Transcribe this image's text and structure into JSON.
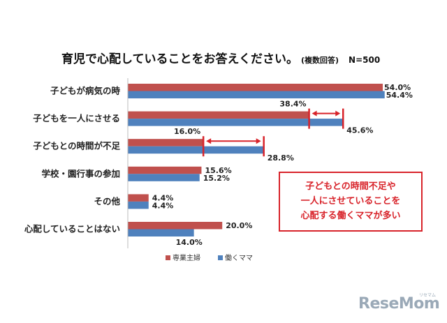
{
  "title": {
    "main": "育児で心配していることをお答えください。",
    "sub": "(複数回答)",
    "n": "N=500"
  },
  "callout": {
    "lines": [
      "子どもとの時間不足や",
      "一人にさせていることを",
      "心配する働くママが多い"
    ]
  },
  "logo": {
    "text": "ReseMom",
    "ruby": "リセマム"
  },
  "colors": {
    "series1": "#c0504d",
    "series2": "#4f81bd",
    "accent": "#d8232a"
  },
  "chart_data": {
    "type": "bar",
    "orientation": "horizontal",
    "categories": [
      "子どもが病気の時",
      "子どもを一人にさせる",
      "子どもとの時間が不足",
      "学校・園行事の参加",
      "その他",
      "心配していることはない"
    ],
    "series": [
      {
        "name": "専業主婦",
        "values": [
          54.0,
          38.4,
          16.0,
          15.6,
          4.4,
          20.0
        ],
        "labels": [
          "54.0%",
          "38.4%",
          "16.0%",
          "15.6%",
          "4.4%",
          "20.0%"
        ]
      },
      {
        "name": "働くママ",
        "values": [
          54.4,
          45.6,
          28.8,
          15.2,
          4.4,
          14.0
        ],
        "labels": [
          "54.4%",
          "45.6%",
          "28.8%",
          "15.2%",
          "4.4%",
          "14.0%"
        ]
      }
    ],
    "legend": {
      "position": "bottom",
      "items": [
        "専業主婦",
        "働くママ"
      ]
    },
    "highlight_gaps": [
      1,
      2
    ]
  }
}
